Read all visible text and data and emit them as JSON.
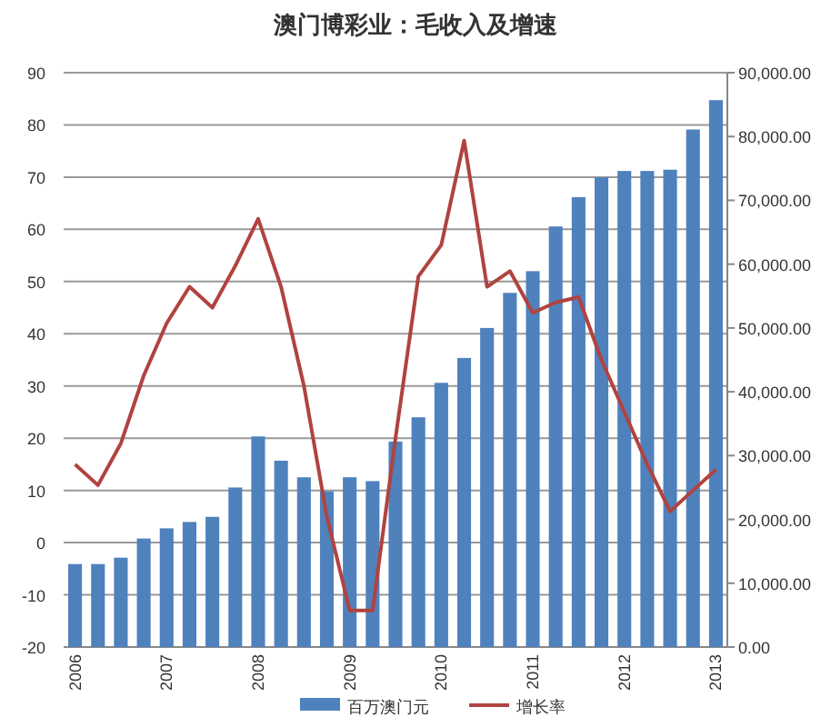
{
  "chart_data": {
    "type": "bar",
    "title": "澳门博彩业：毛收入及增速",
    "categories": [
      "2006",
      null,
      null,
      null,
      "2007",
      null,
      null,
      null,
      "2008",
      null,
      null,
      null,
      "2009",
      null,
      null,
      null,
      "2010",
      null,
      null,
      null,
      "2011",
      null,
      null,
      null,
      "2012",
      null,
      null,
      null,
      "2013"
    ],
    "series": [
      {
        "name": "百万澳门元",
        "axis": "y2",
        "color": "#4f81bd",
        "values": [
          13000,
          13000,
          14000,
          17000,
          18600,
          19600,
          20400,
          25000,
          33000,
          29200,
          26600,
          24400,
          26600,
          26000,
          32200,
          36000,
          41400,
          45300,
          50000,
          55500,
          58900,
          65900,
          70500,
          73600,
          74600,
          74600,
          74800,
          81100,
          85700
        ]
      },
      {
        "name": "增长率",
        "type": "line",
        "axis": "y",
        "color": "#b0433f",
        "values": [
          15,
          11,
          19,
          32,
          42,
          49,
          45,
          53,
          62,
          49,
          30,
          5,
          -13,
          -13,
          20,
          51,
          57,
          77,
          49,
          52,
          44,
          46,
          47,
          35,
          25,
          15,
          6,
          10,
          14
        ]
      }
    ],
    "ylim": [
      -20,
      90
    ],
    "yticks": [
      -20,
      -10,
      0,
      10,
      20,
      30,
      40,
      50,
      60,
      70,
      80,
      90
    ],
    "y2lim": [
      0,
      90000
    ],
    "y2ticks": [
      {
        "value": 0,
        "label": "0.00"
      },
      {
        "value": 10000,
        "label": "10,000.00"
      },
      {
        "value": 20000,
        "label": "20,000.00"
      },
      {
        "value": 30000,
        "label": "30,000.00"
      },
      {
        "value": 40000,
        "label": "40,000.00"
      },
      {
        "value": 50000,
        "label": "50,000.00"
      },
      {
        "value": 60000,
        "label": "60,000.00"
      },
      {
        "value": 70000,
        "label": "70,000.00"
      },
      {
        "value": 80000,
        "label": "80,000.00"
      },
      {
        "value": 90000,
        "label": "90,000.00"
      }
    ],
    "grid": "y",
    "legend": "bottom",
    "marker": "none",
    "line_style": "solid"
  }
}
